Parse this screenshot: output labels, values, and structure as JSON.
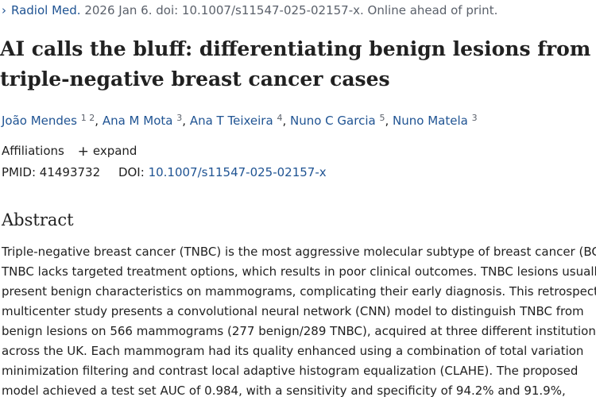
{
  "citation": {
    "journal": "Radiol Med.",
    "details": "2026 Jan 6. doi: 10.1007/s11547-025-02157-x. Online ahead of print."
  },
  "title_lines": [
    "AI calls the bluff: differentiating benign lesions from",
    "triple-negative breast cancer cases"
  ],
  "authors": [
    {
      "name": "João Mendes",
      "affil": "1 2"
    },
    {
      "name": "Ana M Mota",
      "affil": "3"
    },
    {
      "name": "Ana T Teixeira",
      "affil": "4"
    },
    {
      "name": "Nuno C Garcia",
      "affil": "5"
    },
    {
      "name": "Nuno Matela",
      "affil": "3"
    }
  ],
  "affiliations": {
    "label": "Affiliations",
    "expand_label": "expand"
  },
  "identifiers": {
    "pmid_label": "PMID:",
    "pmid": "41493732",
    "doi_label": "DOI:",
    "doi": "10.1007/s11547-025-02157-x"
  },
  "abstract": {
    "heading": "Abstract",
    "lines": [
      "Triple-negative breast cancer (TNBC) is the most aggressive molecular subtype of breast cancer (BC).",
      "TNBC lacks targeted treatment options, which results in poor clinical outcomes. TNBC lesions usually",
      "present benign characteristics on mammograms, complicating their early diagnosis. This retrospective",
      "multicenter study presents a convolutional neural network (CNN) model to distinguish TNBC from",
      "benign lesions on 566 mammograms (277 benign/289 TNBC), acquired at three different institutions",
      "across the UK. Each mammogram had its quality enhanced using a combination of total variation",
      "minimization filtering and contrast local adaptive histogram equalization (CLAHE). The proposed",
      "model achieved a test set AUC of 0.984, with a sensitivity and specificity of 94.2% and 91.9%,"
    ]
  },
  "colors": {
    "link": "#205493",
    "text": "#212121",
    "muted": "#5b616b"
  }
}
